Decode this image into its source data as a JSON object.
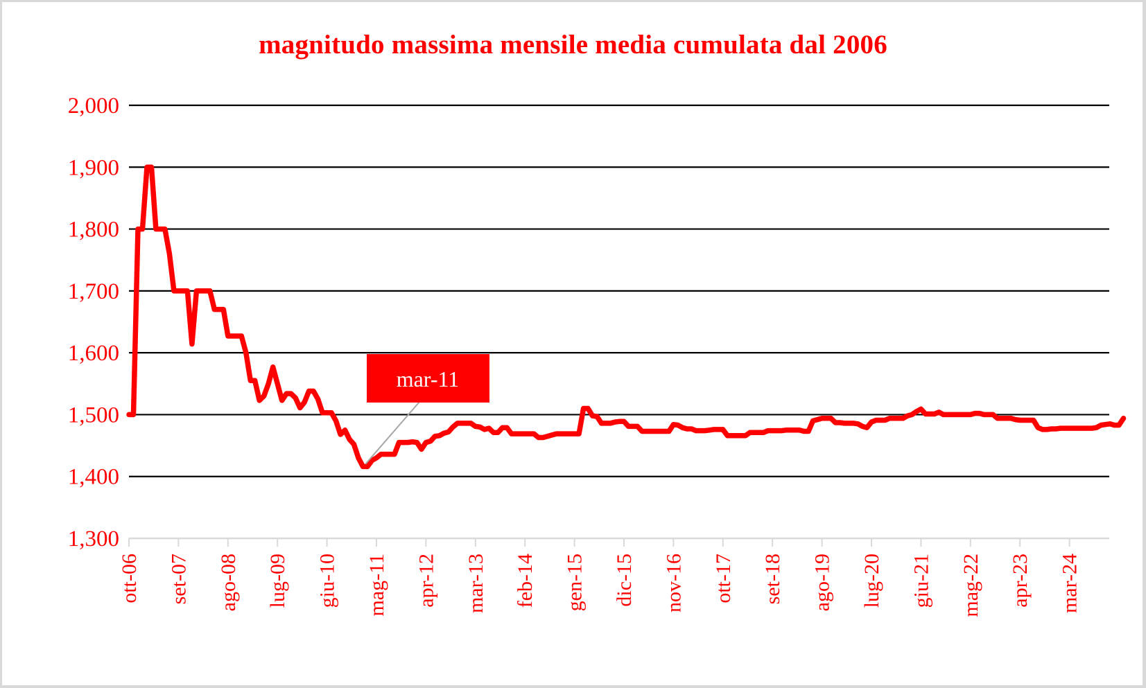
{
  "chart_data": {
    "type": "line",
    "title": "magnitudo massima mensile media cumulata dal 2006",
    "xlabel": "",
    "ylabel": "",
    "ylim": [
      1.3,
      2.0
    ],
    "yticks": [
      1.3,
      1.4,
      1.5,
      1.6,
      1.7,
      1.8,
      1.9,
      2.0
    ],
    "ytick_labels": [
      "1,300",
      "1,400",
      "1,500",
      "1,600",
      "1,700",
      "1,800",
      "1,900",
      "2,000"
    ],
    "xtick_labels": [
      "ott-06",
      "set-07",
      "ago-08",
      "lug-09",
      "giu-10",
      "mag-11",
      "apr-12",
      "mar-13",
      "feb-14",
      "gen-15",
      "dic-15",
      "nov-16",
      "ott-17",
      "set-18",
      "ago-19",
      "lug-20",
      "giu-21",
      "mag-22",
      "apr-23",
      "mar-24"
    ],
    "xtick_interval_months": 11,
    "grid": {
      "horizontal": true,
      "vertical": false
    },
    "legend": null,
    "series": [
      {
        "name": "magnitudo massima mensile media cumulata",
        "color": "#ff0000",
        "start": "ott-06",
        "frequency": "monthly",
        "values": [
          1.5,
          1.5,
          1.8,
          1.8,
          1.9,
          1.9,
          1.8,
          1.8,
          1.8,
          1.76,
          1.7,
          1.7,
          1.7,
          1.7,
          1.614,
          1.7,
          1.7,
          1.7,
          1.7,
          1.67,
          1.67,
          1.67,
          1.627,
          1.627,
          1.627,
          1.627,
          1.6,
          1.555,
          1.555,
          1.523,
          1.53,
          1.55,
          1.577,
          1.55,
          1.523,
          1.534,
          1.534,
          1.527,
          1.511,
          1.52,
          1.538,
          1.538,
          1.525,
          1.503,
          1.503,
          1.503,
          1.49,
          1.468,
          1.475,
          1.46,
          1.452,
          1.43,
          1.416,
          1.416,
          1.426,
          1.43,
          1.436,
          1.436,
          1.436,
          1.436,
          1.455,
          1.455,
          1.455,
          1.456,
          1.455,
          1.444,
          1.455,
          1.457,
          1.465,
          1.466,
          1.47,
          1.472,
          1.48,
          1.486,
          1.486,
          1.486,
          1.486,
          1.481,
          1.48,
          1.476,
          1.478,
          1.471,
          1.471,
          1.479,
          1.479,
          1.469,
          1.469,
          1.469,
          1.469,
          1.469,
          1.469,
          1.463,
          1.463,
          1.465,
          1.467,
          1.469,
          1.469,
          1.469,
          1.469,
          1.469,
          1.469,
          1.51,
          1.51,
          1.498,
          1.497,
          1.486,
          1.486,
          1.486,
          1.488,
          1.489,
          1.489,
          1.481,
          1.481,
          1.481,
          1.473,
          1.473,
          1.473,
          1.473,
          1.473,
          1.473,
          1.473,
          1.484,
          1.483,
          1.479,
          1.477,
          1.477,
          1.474,
          1.474,
          1.474,
          1.475,
          1.476,
          1.476,
          1.476,
          1.466,
          1.466,
          1.466,
          1.466,
          1.466,
          1.471,
          1.471,
          1.471,
          1.471,
          1.474,
          1.474,
          1.474,
          1.474,
          1.475,
          1.475,
          1.475,
          1.475,
          1.473,
          1.473,
          1.49,
          1.492,
          1.494,
          1.494,
          1.494,
          1.487,
          1.487,
          1.486,
          1.486,
          1.486,
          1.485,
          1.481,
          1.479,
          1.488,
          1.491,
          1.491,
          1.491,
          1.494,
          1.494,
          1.494,
          1.494,
          1.498,
          1.5,
          1.505,
          1.509,
          1.501,
          1.501,
          1.501,
          1.504,
          1.5,
          1.5,
          1.5,
          1.5,
          1.5,
          1.5,
          1.5,
          1.502,
          1.502,
          1.5,
          1.5,
          1.5,
          1.494,
          1.494,
          1.494,
          1.494,
          1.492,
          1.491,
          1.491,
          1.491,
          1.491,
          1.479,
          1.476,
          1.476,
          1.477,
          1.477,
          1.478,
          1.478,
          1.478,
          1.478,
          1.478,
          1.478,
          1.478,
          1.478,
          1.479,
          1.483,
          1.484,
          1.485,
          1.483,
          1.483,
          1.494
        ]
      }
    ],
    "annotations": [
      {
        "label": "mar-11",
        "points_to_value": 1.416,
        "style": "white text on red box with grey leader line"
      }
    ]
  },
  "colors": {
    "line": "#ff0000",
    "text": "#ff0000",
    "grid": "#000000",
    "axis": "#d9d9d9",
    "annotation_box": "#ff0000",
    "annotation_text": "#ffffff",
    "leader": "#a6a6a6",
    "background": "#ffffff",
    "frame": "#d9d9d9"
  }
}
